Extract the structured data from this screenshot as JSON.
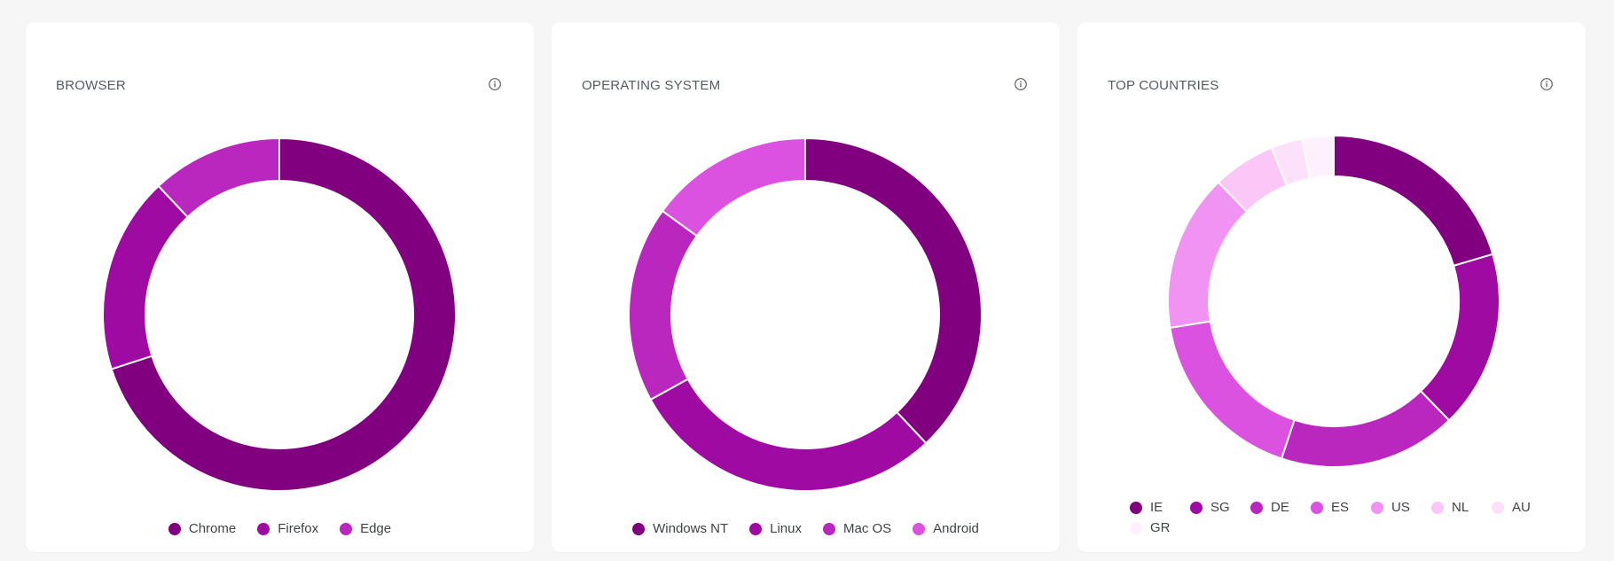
{
  "cards": [
    {
      "title": "BROWSER",
      "info_icon": "info-circle-icon"
    },
    {
      "title": "OPERATING SYSTEM",
      "info_icon": "info-circle-icon"
    },
    {
      "title": "TOP COUNTRIES",
      "info_icon": "info-circle-icon"
    }
  ],
  "chart_data": [
    {
      "type": "pie",
      "variant": "donut",
      "title": "BROWSER",
      "categories": [
        "Chrome",
        "Firefox",
        "Edge"
      ],
      "values": [
        70,
        18,
        12
      ],
      "colors": [
        "#800080",
        "#9e0aa2",
        "#ba27bf"
      ],
      "legend": "bottom"
    },
    {
      "type": "pie",
      "variant": "donut",
      "title": "OPERATING SYSTEM",
      "categories": [
        "Windows NT",
        "Linux",
        "Mac OS",
        "Android"
      ],
      "values": [
        38,
        29,
        18,
        15
      ],
      "colors": [
        "#800080",
        "#9e0aa2",
        "#ba27bf",
        "#dc52e0"
      ],
      "legend": "bottom"
    },
    {
      "type": "pie",
      "variant": "donut",
      "title": "TOP COUNTRIES",
      "categories": [
        "IE",
        "SG",
        "DE",
        "ES",
        "US",
        "NL",
        "AU",
        "GR"
      ],
      "values": [
        20,
        17,
        17,
        17,
        15,
        6,
        3,
        3
      ],
      "colors": [
        "#800080",
        "#9e0aa2",
        "#ba27bf",
        "#dc52e0",
        "#f193f2",
        "#fbc7f7",
        "#fde0fa",
        "#fff0fd"
      ],
      "legend": "bottom"
    }
  ]
}
